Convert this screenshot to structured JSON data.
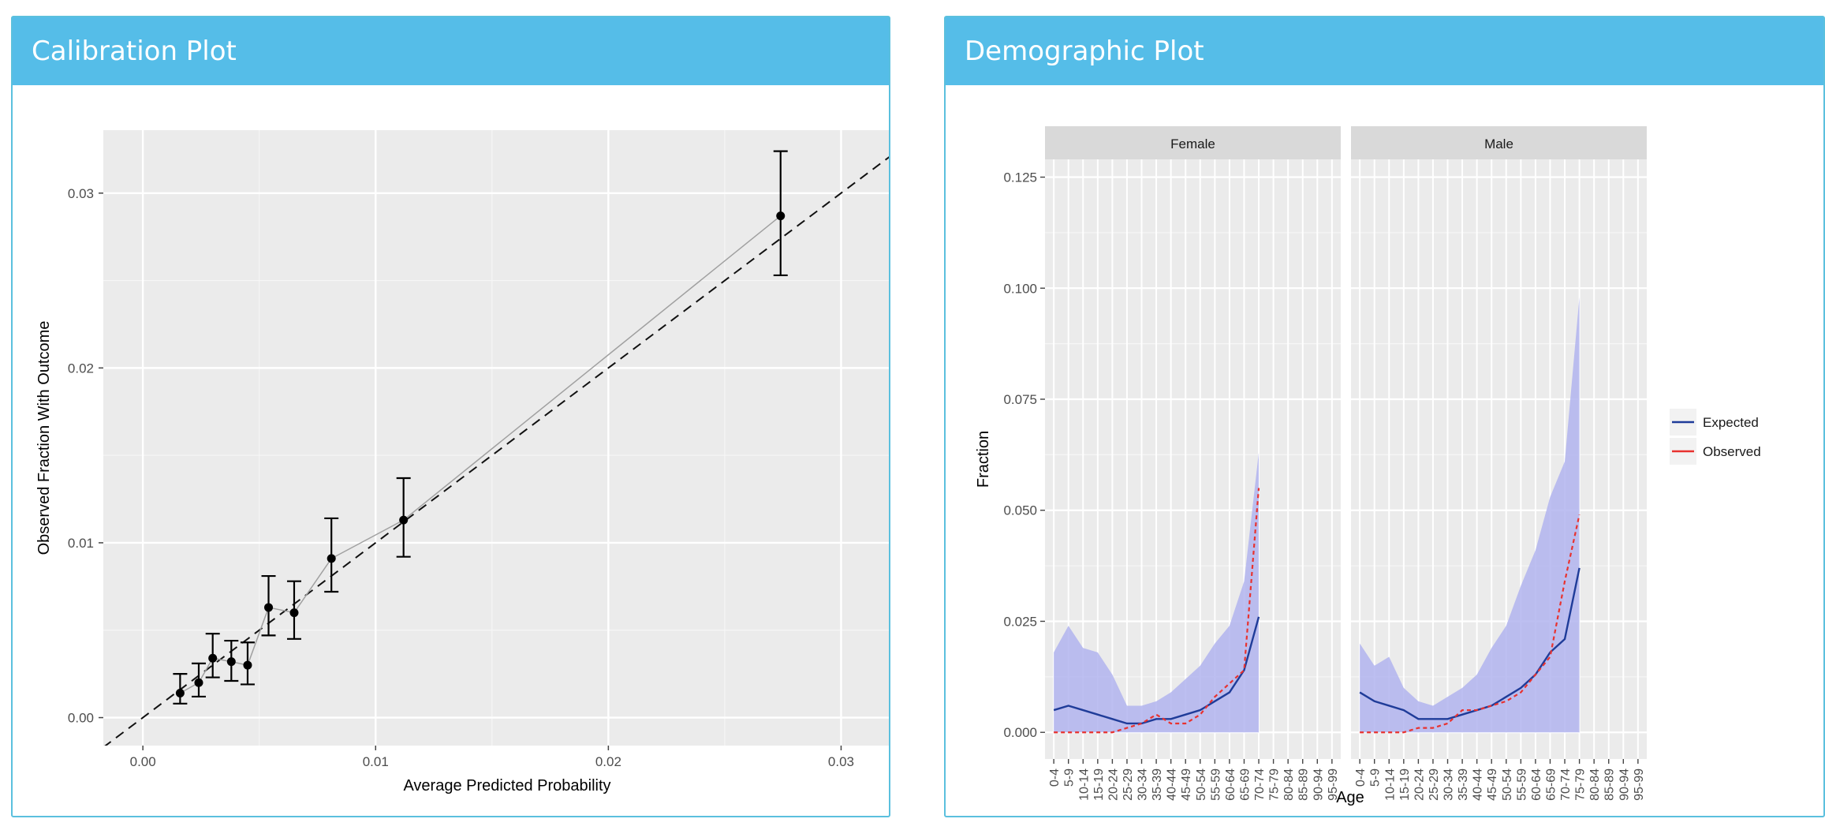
{
  "calibration": {
    "title": "Calibration Plot",
    "chart_data": {
      "type": "scatter",
      "xlabel": "Average Predicted Probability",
      "ylabel": "Observed Fraction With Outcome",
      "xlim": [
        -0.0017,
        0.033
      ],
      "ylim": [
        -0.0016,
        0.0336
      ],
      "x_ticks": [
        0.0,
        0.01,
        0.02,
        0.03
      ],
      "x_tick_labels": [
        "0.00",
        "0.01",
        "0.02",
        "0.03"
      ],
      "y_ticks": [
        0.0,
        0.01,
        0.02,
        0.03
      ],
      "y_tick_labels": [
        "0.00",
        "0.01",
        "0.02",
        "0.03"
      ],
      "grid": true,
      "reference_line": "dashed y = x",
      "points": [
        {
          "x": 0.0016,
          "y": 0.0014,
          "lo": 0.0008,
          "hi": 0.0025
        },
        {
          "x": 0.0024,
          "y": 0.002,
          "lo": 0.0012,
          "hi": 0.0031
        },
        {
          "x": 0.003,
          "y": 0.0034,
          "lo": 0.0023,
          "hi": 0.0048
        },
        {
          "x": 0.0038,
          "y": 0.0032,
          "lo": 0.0021,
          "hi": 0.0044
        },
        {
          "x": 0.0045,
          "y": 0.003,
          "lo": 0.0019,
          "hi": 0.0043
        },
        {
          "x": 0.0054,
          "y": 0.0063,
          "lo": 0.0047,
          "hi": 0.0081
        },
        {
          "x": 0.0065,
          "y": 0.006,
          "lo": 0.0045,
          "hi": 0.0078
        },
        {
          "x": 0.0081,
          "y": 0.0091,
          "lo": 0.0072,
          "hi": 0.0114
        },
        {
          "x": 0.0112,
          "y": 0.0113,
          "lo": 0.0092,
          "hi": 0.0137
        },
        {
          "x": 0.0274,
          "y": 0.0287,
          "lo": 0.0253,
          "hi": 0.0324
        }
      ]
    }
  },
  "demographic": {
    "title": "Demographic Plot",
    "chart_data": {
      "type": "line",
      "xlabel": "Age",
      "ylabel": "Fraction",
      "ylim": [
        -0.006,
        0.129
      ],
      "y_ticks": [
        0.0,
        0.025,
        0.05,
        0.075,
        0.1,
        0.125
      ],
      "y_tick_labels": [
        "0.000",
        "0.025",
        "0.050",
        "0.075",
        "0.100",
        "0.125"
      ],
      "categories": [
        "0-4",
        "5-9",
        "10-14",
        "15-19",
        "20-24",
        "25-29",
        "30-34",
        "35-39",
        "40-44",
        "45-49",
        "50-54",
        "55-59",
        "60-64",
        "65-69",
        "70-74",
        "75-79",
        "80-84",
        "85-89",
        "90-94",
        "95-99"
      ],
      "facets": [
        "Female",
        "Male"
      ],
      "legend": {
        "position": "right",
        "entries": [
          {
            "label": "Expected",
            "color": "#1f3c99"
          },
          {
            "label": "Observed",
            "color": "#e8322f"
          }
        ]
      },
      "band_color": "#b2b4ef",
      "series": [
        {
          "facet": "Female",
          "name": "Expected",
          "values": [
            0.005,
            0.006,
            0.005,
            0.004,
            0.003,
            0.002,
            0.002,
            0.003,
            0.003,
            0.004,
            0.005,
            0.007,
            0.009,
            0.014,
            0.026,
            null,
            null,
            null,
            null,
            null
          ]
        },
        {
          "facet": "Female",
          "name": "Observed",
          "values": [
            0.0,
            0.0,
            0.0,
            0.0,
            0.0,
            0.001,
            0.002,
            0.004,
            0.002,
            0.002,
            0.004,
            0.008,
            0.011,
            0.014,
            0.055,
            null,
            null,
            null,
            null,
            null
          ]
        },
        {
          "facet": "Female",
          "name": "band_lower",
          "values": [
            0,
            0,
            0,
            0,
            0,
            0,
            0,
            0,
            0,
            0,
            0,
            0,
            0,
            0,
            0,
            null,
            null,
            null,
            null,
            null
          ]
        },
        {
          "facet": "Female",
          "name": "band_upper",
          "values": [
            0.018,
            0.024,
            0.019,
            0.018,
            0.013,
            0.006,
            0.006,
            0.007,
            0.009,
            0.012,
            0.015,
            0.02,
            0.024,
            0.034,
            0.063,
            null,
            null,
            null,
            null,
            null
          ]
        },
        {
          "facet": "Male",
          "name": "Expected",
          "values": [
            0.009,
            0.007,
            0.006,
            0.005,
            0.003,
            0.003,
            0.003,
            0.004,
            0.005,
            0.006,
            0.008,
            0.01,
            0.013,
            0.018,
            0.021,
            0.037,
            null,
            null,
            null,
            null
          ]
        },
        {
          "facet": "Male",
          "name": "Observed",
          "values": [
            0.0,
            0.0,
            0.0,
            0.0,
            0.001,
            0.001,
            0.002,
            0.005,
            0.005,
            0.006,
            0.007,
            0.009,
            0.013,
            0.017,
            0.034,
            0.049,
            null,
            null,
            null,
            null
          ]
        },
        {
          "facet": "Male",
          "name": "band_lower",
          "values": [
            0,
            0,
            0,
            0,
            0,
            0,
            0,
            0,
            0,
            0,
            0,
            0,
            0,
            0,
            0,
            0,
            null,
            null,
            null,
            null
          ]
        },
        {
          "facet": "Male",
          "name": "band_upper",
          "values": [
            0.02,
            0.015,
            0.017,
            0.01,
            0.007,
            0.006,
            0.008,
            0.01,
            0.013,
            0.019,
            0.024,
            0.033,
            0.041,
            0.053,
            0.061,
            0.098,
            null,
            null,
            null,
            null
          ]
        }
      ]
    }
  }
}
